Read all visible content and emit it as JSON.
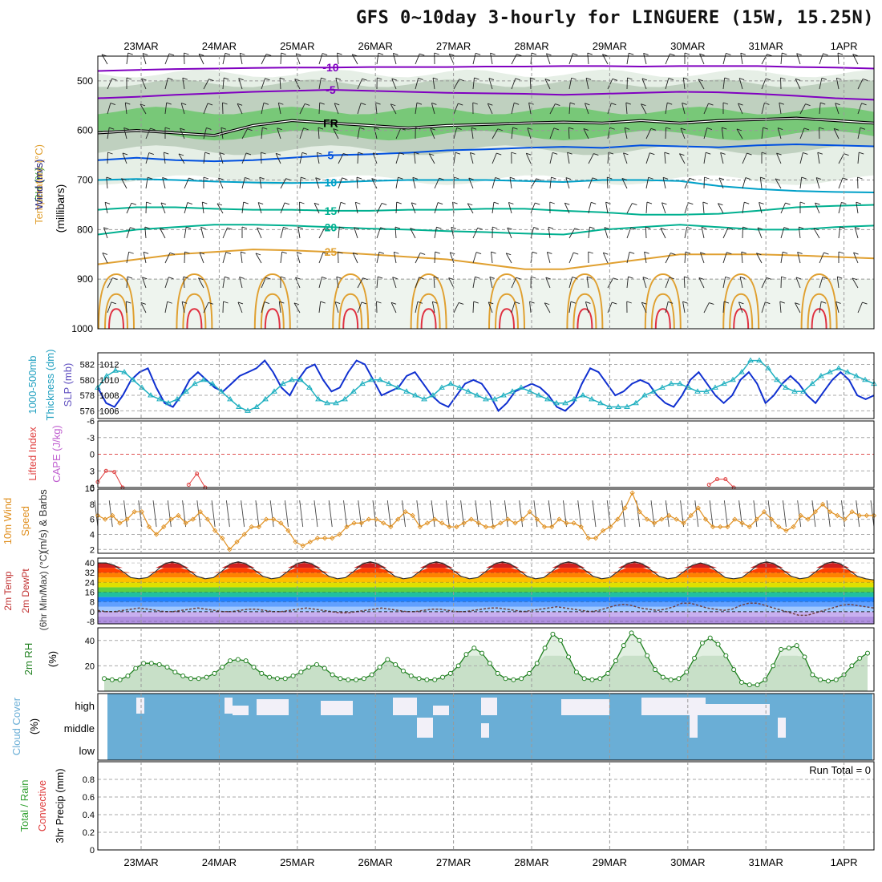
{
  "title": "GFS 0~10day 3-hourly for LINGUERE (15W, 15.25N)",
  "colors": {
    "temp_cold": "#8000c0",
    "temp_blue": "#0050e0",
    "temp_cyan": "#00a0c8",
    "temp_teal": "#00b090",
    "temp_orange": "#e0a030",
    "temp_red": "#e03040",
    "rh_green": "#40c040",
    "slp": "#1030d0",
    "thickness": "#20b0c0",
    "wind10m": "#e09020",
    "rh2m": "#208020",
    "cloud": "#6aaed6",
    "lifted": "#e04040"
  },
  "chart_data": [
    {
      "type": "heatmap",
      "panel": "upper-air",
      "y_label_parts": [
        "RH (%)",
        "Temperature (°C)",
        "Wind (m/s)"
      ],
      "y_sub_label": "(millibars)",
      "x_top_ticks": [
        "23MAR",
        "24MAR",
        "25MAR",
        "26MAR",
        "27MAR",
        "28MAR",
        "29MAR",
        "30MAR",
        "31MAR",
        "1APR"
      ],
      "pressure_ticks": [
        500,
        600,
        700,
        800,
        900,
        1000
      ],
      "ylim": [
        1000,
        450
      ],
      "freezing_label": "FR",
      "isotherms": [
        {
          "value": -10,
          "label": "-10",
          "pressure": [
            480,
            478,
            476,
            475,
            474,
            473,
            473,
            472,
            472,
            472,
            471,
            471,
            470,
            470,
            471,
            470,
            470,
            470,
            472,
            473,
            475
          ]
        },
        {
          "value": -5,
          "label": "-5",
          "pressure": [
            535,
            532,
            528,
            525,
            522,
            520,
            518,
            520,
            522,
            524,
            525,
            526,
            528,
            526,
            524,
            522,
            523,
            526,
            530,
            535,
            538
          ]
        },
        {
          "value": 0,
          "label": "FR",
          "pressure": [
            605,
            600,
            605,
            610,
            590,
            580,
            585,
            590,
            595,
            590,
            588,
            585,
            583,
            585,
            580,
            585,
            580,
            578,
            575,
            580,
            585
          ]
        },
        {
          "value": 5,
          "label": "5",
          "pressure": [
            660,
            655,
            660,
            662,
            660,
            655,
            650,
            648,
            645,
            640,
            638,
            635,
            633,
            635,
            630,
            632,
            634,
            630,
            628,
            630,
            632
          ]
        },
        {
          "value": 10,
          "label": "10",
          "pressure": [
            700,
            698,
            700,
            703,
            705,
            706,
            705,
            702,
            700,
            700,
            700,
            702,
            704,
            700,
            700,
            702,
            712,
            718,
            722,
            724,
            725
          ]
        },
        {
          "value": 15,
          "label": "15",
          "pressure": [
            760,
            755,
            755,
            758,
            760,
            760,
            762,
            762,
            760,
            760,
            758,
            758,
            762,
            765,
            770,
            770,
            768,
            762,
            755,
            752,
            750
          ]
        },
        {
          "value": 20,
          "label": "20",
          "pressure": [
            810,
            800,
            795,
            790,
            790,
            792,
            795,
            798,
            800,
            803,
            805,
            808,
            810,
            800,
            795,
            790,
            795,
            800,
            800,
            795,
            792
          ]
        },
        {
          "value": 25,
          "label": "25",
          "pressure": [
            870,
            860,
            850,
            845,
            840,
            842,
            845,
            850,
            855,
            860,
            870,
            880,
            880,
            870,
            860,
            850,
            850,
            850,
            852,
            855,
            858
          ]
        }
      ]
    },
    {
      "type": "line",
      "panel": "slp-thickness",
      "y_label_parts": [
        "1000-500mb",
        "Thickness (dm)",
        "SLP (mb)"
      ],
      "slp_ticks": [
        1006,
        1008,
        1010,
        1012
      ],
      "thickness_ticks": [
        576,
        578,
        580,
        582
      ],
      "series": [
        {
          "name": "SLP",
          "unit": "mb",
          "ylim": [
            1005,
            1013.5
          ],
          "values": [
            1009,
            1007,
            1006.5,
            1008,
            1010,
            1011,
            1011.5,
            1009,
            1007,
            1006.5,
            1008,
            1010,
            1011,
            1010,
            1009,
            1008.5,
            1009.5,
            1010.5,
            1011,
            1011.5,
            1012.5,
            1011,
            1009,
            1008,
            1010,
            1011.5,
            1012,
            1010,
            1008.5,
            1009,
            1011,
            1012.5,
            1012,
            1010,
            1008,
            1008.5,
            1009,
            1010.5,
            1011,
            1009.5,
            1008,
            1007,
            1006.5,
            1008,
            1009.5,
            1010,
            1009.5,
            1008,
            1006,
            1007,
            1008.5,
            1009,
            1009.5,
            1009,
            1008,
            1006.5,
            1006,
            1007,
            1009.5,
            1011.5,
            1011,
            1009.5,
            1008,
            1008.5,
            1009.5,
            1010,
            1009.5,
            1008,
            1007,
            1006.5,
            1008,
            1010,
            1011,
            1009.5,
            1008,
            1007,
            1008,
            1010,
            1011,
            1009.5,
            1007,
            1008,
            1009.5,
            1010.5,
            1009.5,
            1008,
            1007,
            1008.5,
            1010,
            1011,
            1010,
            1008,
            1007.5,
            1008
          ]
        },
        {
          "name": "Thickness",
          "unit": "dm",
          "ylim": [
            575,
            583.5
          ],
          "values": [
            579,
            580.5,
            581.2,
            581,
            580,
            579,
            578,
            577.5,
            577,
            577.5,
            578.5,
            579.5,
            580,
            579.5,
            578.5,
            577.5,
            576.5,
            576,
            576.5,
            577.5,
            578.5,
            579.5,
            580,
            580,
            579,
            577.5,
            577,
            577,
            577.5,
            578.5,
            579.5,
            580,
            580,
            579.5,
            579,
            578.5,
            578,
            577.5,
            578,
            579,
            579.5,
            579,
            578.5,
            578,
            577.5,
            577.5,
            578,
            578.5,
            579,
            578.5,
            578,
            577.5,
            577,
            577,
            577.5,
            578,
            577.5,
            577,
            576.5,
            576.5,
            576.5,
            577,
            578,
            578.5,
            579,
            579.5,
            579.5,
            579,
            578.5,
            578.5,
            579,
            579.5,
            580,
            581,
            582.5,
            582.5,
            581.5,
            580,
            579,
            578.5,
            578.5,
            579.5,
            580.5,
            581,
            581.5,
            581,
            580.5,
            580,
            579.5
          ]
        }
      ]
    },
    {
      "type": "line",
      "panel": "lifted-cape",
      "y_label_parts": [
        "Lifted Index",
        "CAPE (J/kg)"
      ],
      "li_ticks": [
        "-6",
        "-3",
        "0",
        "3",
        "6"
      ],
      "cape_ticks": [
        "10"
      ],
      "series": [
        {
          "name": "Lifted Index",
          "points": [
            [
              0,
              5
            ],
            [
              1,
              3
            ],
            [
              2,
              3.2
            ],
            [
              3,
              6
            ]
          ],
          "points2": [
            [
              11,
              5.5
            ],
            [
              12,
              3.5
            ],
            [
              13,
              6
            ]
          ],
          "points3": [
            [
              74,
              5.5
            ],
            [
              75,
              4.5
            ],
            [
              76,
              4.5
            ],
            [
              77,
              6
            ]
          ]
        }
      ]
    },
    {
      "type": "line",
      "panel": "wind10m",
      "y_label_parts": [
        "10m Wind",
        "Speed",
        "(m/s) & Barbs"
      ],
      "ylim": [
        1.5,
        10
      ],
      "ticks": [
        2,
        4,
        6,
        8
      ],
      "series": [
        {
          "name": "10m Wind Speed",
          "values": [
            6.5,
            6,
            6.5,
            5.5,
            6,
            7,
            7,
            5,
            4,
            5,
            6,
            6.5,
            5.5,
            6,
            7,
            6,
            4.5,
            3.5,
            2,
            3,
            4,
            5,
            5,
            6,
            6,
            5.5,
            4.5,
            3,
            2.5,
            3,
            3.5,
            3.5,
            3.5,
            4,
            5,
            5.5,
            5.5,
            6,
            6,
            5.5,
            5,
            6,
            7,
            6.5,
            5,
            5.5,
            6,
            5.5,
            5,
            5,
            5.5,
            6,
            5.5,
            5,
            5,
            5.5,
            6,
            5.5,
            6,
            7,
            6,
            5,
            5,
            6,
            5.5,
            5.5,
            5,
            3.5,
            3.5,
            4.5,
            5,
            6,
            7.5,
            9.5,
            7,
            6,
            5.5,
            6,
            6.5,
            6,
            5.5,
            6.5,
            7.5,
            6,
            5,
            5,
            5,
            6,
            5.5,
            5,
            6,
            7,
            6,
            5,
            4.5,
            5,
            6.5,
            6,
            7,
            8,
            7,
            6.5,
            6,
            7,
            6.5,
            6.5,
            6.5
          ]
        }
      ]
    },
    {
      "type": "area",
      "panel": "temp2m",
      "y_label_parts": [
        "2m Temp",
        "2m DewPt",
        "(6hr Min/Max) (°C)"
      ],
      "ylim": [
        -10,
        44
      ],
      "ticks": [
        -8,
        0,
        8,
        16,
        24,
        32,
        40
      ],
      "series": [
        {
          "name": "2m Temp",
          "values": [
            40,
            40,
            38,
            33,
            28,
            27,
            28,
            33,
            39,
            41,
            39,
            34,
            29,
            27,
            28,
            33,
            39,
            41,
            39,
            34,
            29,
            27,
            28,
            33,
            39,
            41,
            39,
            34,
            29,
            27,
            28,
            33,
            39,
            41,
            39,
            34,
            29,
            27,
            28,
            33,
            39,
            41,
            39,
            34,
            29,
            27,
            28,
            33,
            39,
            41,
            39,
            34,
            29,
            27,
            28,
            33,
            39,
            41,
            39,
            34,
            29,
            27,
            28,
            33,
            39,
            41,
            39,
            34,
            29,
            27,
            28,
            33,
            38,
            40,
            38,
            33,
            28,
            27,
            28,
            33,
            39,
            41,
            39,
            34,
            29,
            27,
            28,
            33,
            39,
            41,
            39,
            34,
            29,
            27,
            26
          ]
        },
        {
          "name": "2m DewPt",
          "values": [
            1,
            0,
            0,
            1,
            2,
            3,
            2,
            1,
            0,
            0,
            1,
            2,
            3,
            2,
            1,
            0,
            0,
            1,
            2,
            2,
            1,
            0,
            0,
            1,
            2,
            3,
            2,
            1,
            0,
            -1,
            -1,
            0,
            1,
            2,
            3,
            2,
            1,
            0,
            0,
            1,
            2,
            2,
            1,
            0,
            0,
            1,
            2,
            3,
            3,
            2,
            1,
            0,
            1,
            2,
            3,
            4,
            3,
            2,
            1,
            0,
            1,
            3,
            5,
            6,
            5,
            3,
            2,
            1,
            2,
            4,
            7,
            7,
            5,
            3,
            2,
            1,
            2,
            5,
            7,
            7,
            5,
            3,
            1,
            -1,
            -3,
            -3,
            -1,
            1,
            3,
            5,
            6,
            5,
            4,
            3
          ]
        }
      ]
    },
    {
      "type": "area",
      "panel": "rh2m",
      "y_label_parts": [
        "2m RH",
        "(%)"
      ],
      "ylim": [
        0,
        50
      ],
      "ticks": [
        20,
        40
      ],
      "series": [
        {
          "name": "2m RH",
          "values": [
            10,
            9,
            9,
            12,
            18,
            22,
            22,
            21,
            19,
            15,
            12,
            10,
            10,
            11,
            14,
            19,
            24,
            25,
            24,
            19,
            14,
            11,
            10,
            10,
            12,
            15,
            19,
            21,
            18,
            13,
            10,
            9,
            9,
            10,
            13,
            19,
            25,
            21,
            16,
            12,
            10,
            9,
            9,
            11,
            14,
            20,
            29,
            34,
            30,
            22,
            14,
            10,
            9,
            10,
            14,
            22,
            34,
            45,
            40,
            27,
            15,
            10,
            9,
            10,
            14,
            24,
            36,
            46,
            40,
            28,
            17,
            11,
            9,
            10,
            15,
            26,
            38,
            42,
            37,
            28,
            17,
            7,
            5,
            5,
            9,
            20,
            33,
            34,
            36,
            27,
            13,
            9,
            8,
            9,
            13,
            20,
            26,
            30
          ]
        }
      ]
    },
    {
      "type": "heatmap",
      "panel": "cloud",
      "y_label_parts": [
        "Cloud Cover",
        "(%)"
      ],
      "levels": [
        "high",
        "middle",
        "low"
      ]
    },
    {
      "type": "bar",
      "panel": "precip",
      "y_label_parts": [
        "Total / Rain",
        "Convective",
        "3hr Precip (mm)"
      ],
      "ylim": [
        0,
        1
      ],
      "ticks": [
        "0",
        "0.2",
        "0.4",
        "0.6",
        "0.8"
      ],
      "run_total_label": "Run Total = 0",
      "x_bottom_ticks": [
        "23MAR",
        "24MAR",
        "25MAR",
        "26MAR",
        "27MAR",
        "28MAR",
        "29MAR",
        "30MAR",
        "31MAR",
        "1APR"
      ],
      "values": []
    }
  ]
}
